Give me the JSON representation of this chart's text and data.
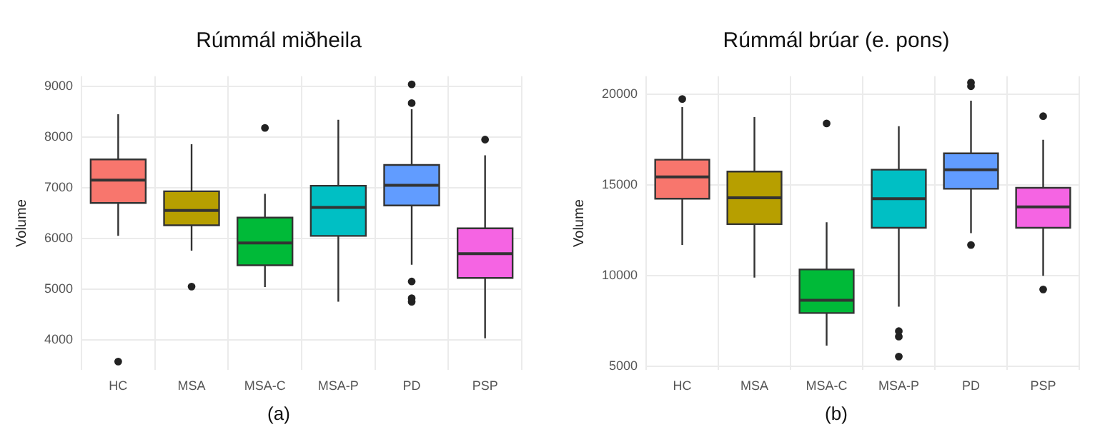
{
  "chart_data": [
    {
      "type": "box",
      "title": "Rúmmál miðheila",
      "ylabel": "Volume",
      "annotations": [
        "(a)"
      ],
      "grid": true,
      "categories": [
        "HC",
        "MSA",
        "MSA-C",
        "MSA-P",
        "PD",
        "PSP"
      ],
      "colors": [
        "#f8766d",
        "#b79f00",
        "#00ba38",
        "#00bfc4",
        "#619cff",
        "#f564e3"
      ],
      "ylim": [
        3400,
        9200
      ],
      "yticks": [
        4000,
        5000,
        6000,
        7000,
        8000,
        9000
      ],
      "boxes": [
        {
          "low": 6050,
          "q1": 6700,
          "median": 7150,
          "q3": 7560,
          "high": 8450,
          "outliers": [
            3570
          ]
        },
        {
          "low": 5760,
          "q1": 6260,
          "median": 6550,
          "q3": 6930,
          "high": 7860,
          "outliers": [
            5050
          ]
        },
        {
          "low": 5040,
          "q1": 5470,
          "median": 5910,
          "q3": 6410,
          "high": 6880,
          "outliers": [
            8180
          ]
        },
        {
          "low": 4750,
          "q1": 6050,
          "median": 6610,
          "q3": 7040,
          "high": 8340
        },
        {
          "low": 5480,
          "q1": 6650,
          "median": 7050,
          "q3": 7450,
          "high": 8550,
          "outliers": [
            9040,
            8670,
            5150,
            4820,
            4750
          ]
        },
        {
          "low": 4030,
          "q1": 5220,
          "median": 5700,
          "q3": 6200,
          "high": 7640,
          "outliers": [
            7950
          ]
        }
      ]
    },
    {
      "type": "box",
      "title": "Rúmmál brúar (e. pons)",
      "ylabel": "Volume",
      "annotations": [
        "(b)"
      ],
      "grid": true,
      "categories": [
        "HC",
        "MSA",
        "MSA-C",
        "MSA-P",
        "PD",
        "PSP"
      ],
      "colors": [
        "#f8766d",
        "#b79f00",
        "#00ba38",
        "#00bfc4",
        "#619cff",
        "#f564e3"
      ],
      "ylim": [
        4800,
        21000
      ],
      "yticks": [
        5000,
        10000,
        15000,
        20000
      ],
      "boxes": [
        {
          "low": 11700,
          "q1": 14250,
          "median": 15450,
          "q3": 16400,
          "high": 19300,
          "outliers": [
            19750
          ]
        },
        {
          "low": 9900,
          "q1": 12850,
          "median": 14300,
          "q3": 15750,
          "high": 18750
        },
        {
          "low": 6150,
          "q1": 7950,
          "median": 8650,
          "q3": 10350,
          "high": 12950,
          "outliers": [
            18400
          ]
        },
        {
          "low": 8300,
          "q1": 12650,
          "median": 14250,
          "q3": 15850,
          "high": 18250,
          "outliers": [
            6950,
            6650,
            5550
          ]
        },
        {
          "low": 12350,
          "q1": 14800,
          "median": 15850,
          "q3": 16750,
          "high": 19650,
          "outliers": [
            20650,
            20450,
            11700
          ]
        },
        {
          "low": 10000,
          "q1": 12650,
          "median": 13800,
          "q3": 14850,
          "high": 17500,
          "outliers": [
            18800,
            9250
          ]
        }
      ]
    }
  ]
}
